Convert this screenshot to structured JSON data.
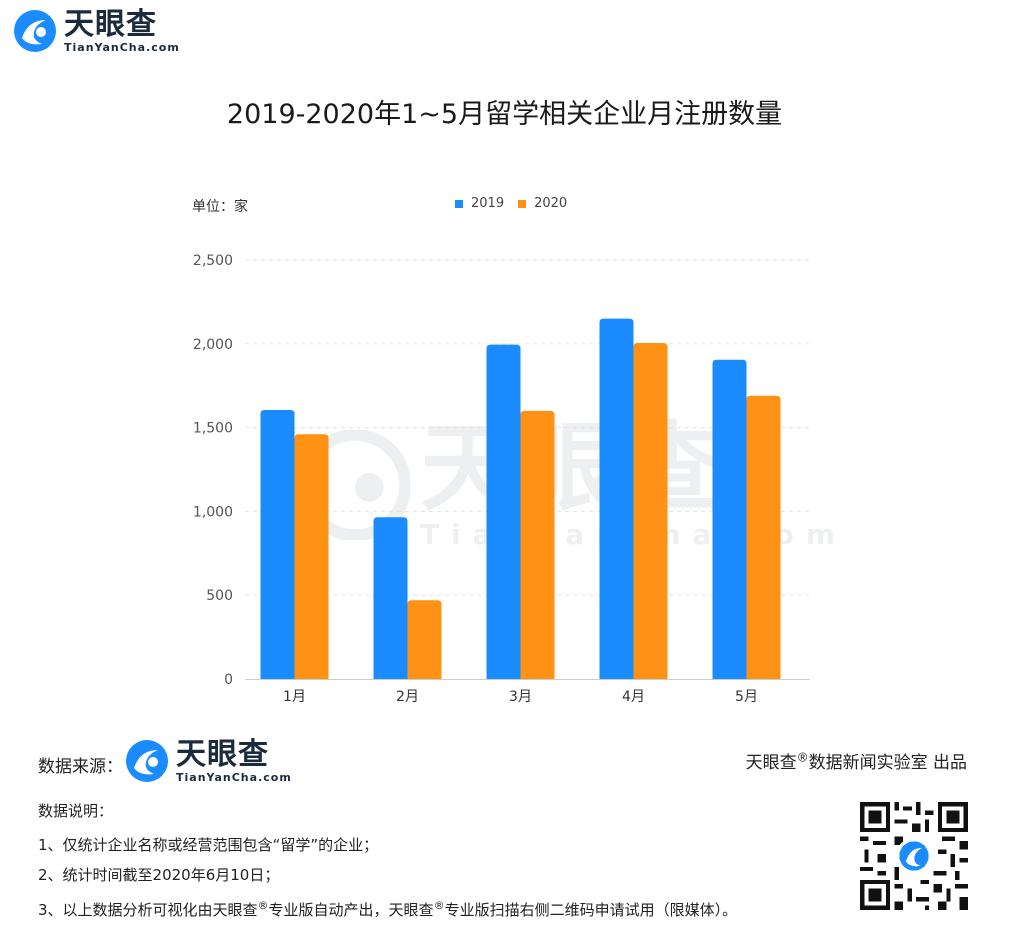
{
  "brand": {
    "name": "天眼查",
    "domain": "TianYanCha.com"
  },
  "chart_data": {
    "type": "bar",
    "title": "2019-2020年1~5月留学相关企业月注册数量",
    "unit_label": "单位：家",
    "categories": [
      "1月",
      "2月",
      "3月",
      "4月",
      "5月"
    ],
    "series": [
      {
        "name": "2019",
        "color": "#1a8cff",
        "values": [
          1605,
          965,
          1995,
          2150,
          1905
        ]
      },
      {
        "name": "2020",
        "color": "#ff9214",
        "values": [
          1460,
          470,
          1600,
          2005,
          1690
        ]
      }
    ],
    "ylim": [
      0,
      2500
    ],
    "yticks": [
      0,
      500,
      1000,
      1500,
      2000,
      2500
    ],
    "ytick_labels": [
      "0",
      "500",
      "1,000",
      "1,500",
      "2,000",
      "2,500"
    ],
    "grid": true,
    "legend_position": "top"
  },
  "footer": {
    "source_label": "数据来源：",
    "producer_brand": "天眼查",
    "producer_mark": "®",
    "producer_rest": "数据新闻实验室 出品",
    "notes_title": "数据说明：",
    "note1": "1、仅统计企业名称或经营范围包含“留学”的企业；",
    "note2": "2、统计时间截至2020年6月10日；",
    "note3_a": "3、以上数据分析可视化由天眼查",
    "note3_b": "专业版自动产出，天眼查",
    "note3_c": "专业版扫描右侧二维码申请试用（限媒体）。",
    "reg_mark": "®"
  }
}
